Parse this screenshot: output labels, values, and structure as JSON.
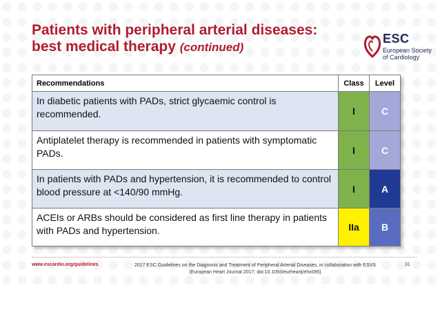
{
  "title": {
    "line1": "Patients with peripheral arterial diseases:",
    "line2_main": "best medical therapy",
    "line2_cont": "(continued)"
  },
  "logo": {
    "brand": "ESC",
    "sub_line1": "European Society",
    "sub_line2": "of Cardiology",
    "icon": "heart-icon",
    "color": "#b01c2e"
  },
  "table": {
    "headers": {
      "recommendations": "Recommendations",
      "class": "Class",
      "level": "Level"
    },
    "rows": [
      {
        "text": "In diabetic patients with PADs, strict glycaemic control is recommended.",
        "class": "I",
        "level": "C"
      },
      {
        "text": "Antiplatelet therapy is recommended in patients with symptomatic PADs.",
        "class": "I",
        "level": "C"
      },
      {
        "text": "In patients with PADs and hypertension, it is recommended to control blood pressure at <140/90 mmHg.",
        "class": "I",
        "level": "A"
      },
      {
        "text": "ACEIs or ARBs should be considered as first line therapy in patients with PADs and hypertension.",
        "class": "IIa",
        "level": "B"
      }
    ],
    "colors": {
      "class_I": "#7fb24a",
      "class_IIa": "#fff200",
      "level_A": "#1f3a94",
      "level_B": "#5a6cc0",
      "level_C": "#a3a8d8",
      "rec_bg": "#dde4f2"
    }
  },
  "footer": {
    "url": "www.escardio.org/guidelines",
    "citation_line1": "2017 ESC Guidelines on the Diagnosis and Treatment of Peripheral Arterial Diseases, in collaboration with ESVS",
    "citation_line2": "(European Heart Journal 2017; doi:10.1093/eurheartj/ehx095)",
    "page": "31"
  }
}
